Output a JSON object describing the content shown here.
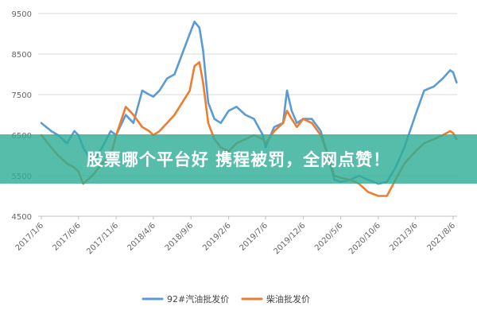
{
  "banner": {
    "text": "股票哪个平台好 携程被罚，全网点赞！"
  },
  "chart_data": {
    "type": "line",
    "title": "",
    "xlabel": "",
    "ylabel": "",
    "ylim": [
      4500,
      9500
    ],
    "yticks": [
      4500,
      5500,
      6500,
      7500,
      8500,
      9500
    ],
    "xtick_labels": [
      "2017/1/6",
      "2017/6/6",
      "2017/11/6",
      "2018/4/6",
      "2018/9/6",
      "2019/2/6",
      "2019/7/6",
      "2019/12/6",
      "2020/5/6",
      "2020/10/6",
      "2021/3/6",
      "2021/8/6"
    ],
    "grid": "horizontal",
    "legend": "bottom",
    "colors": {
      "gasoline": "#5b9bd5",
      "diesel": "#ed7d31"
    },
    "series": [
      {
        "name": "92#汽油批发价",
        "key": "gasoline",
        "x": [
          "2017/1/6",
          "2017/2/15",
          "2017/3/15",
          "2017/4/20",
          "2017/5/20",
          "2017/6/6",
          "2017/6/25",
          "2017/8/1",
          "2017/9/10",
          "2017/10/15",
          "2017/11/6",
          "2017/12/15",
          "2018/1/15",
          "2018/2/20",
          "2018/3/20",
          "2018/4/6",
          "2018/5/1",
          "2018/6/1",
          "2018/7/1",
          "2018/8/1",
          "2018/9/1",
          "2018/9/20",
          "2018/10/10",
          "2018/10/25",
          "2018/11/15",
          "2018/12/10",
          "2019/1/5",
          "2019/2/6",
          "2019/3/10",
          "2019/4/15",
          "2019/5/20",
          "2019/6/25",
          "2019/7/6",
          "2019/8/10",
          "2019/9/15",
          "2019/10/1",
          "2019/10/20",
          "2019/11/10",
          "2019/12/6",
          "2020/1/10",
          "2020/2/15",
          "2020/3/15",
          "2020/4/10",
          "2020/5/6",
          "2020/6/15",
          "2020/7/20",
          "2020/8/25",
          "2020/10/6",
          "2020/11/10",
          "2020/12/15",
          "2021/1/20",
          "2021/3/6",
          "2021/4/10",
          "2021/5/20",
          "2021/6/25",
          "2021/7/25",
          "2021/8/6",
          "2021/8/20"
        ],
        "values": [
          6800,
          6600,
          6500,
          6300,
          6600,
          6500,
          6200,
          5800,
          6200,
          6600,
          6500,
          7000,
          6800,
          7600,
          7500,
          7450,
          7600,
          7900,
          8000,
          8500,
          9000,
          9300,
          9150,
          8600,
          7300,
          6900,
          6800,
          7100,
          7200,
          7000,
          6900,
          6500,
          6200,
          6700,
          6800,
          7600,
          7100,
          6800,
          6900,
          6900,
          6600,
          6000,
          5400,
          5350,
          5400,
          5500,
          5400,
          5300,
          5350,
          5700,
          6200,
          7000,
          7600,
          7700,
          7900,
          8100,
          8050,
          7800
        ]
      },
      {
        "name": "柴油批发价",
        "key": "diesel",
        "x": [
          "2017/1/6",
          "2017/2/15",
          "2017/3/15",
          "2017/4/20",
          "2017/5/20",
          "2017/6/6",
          "2017/6/25",
          "2017/8/1",
          "2017/9/10",
          "2017/10/15",
          "2017/11/6",
          "2017/12/15",
          "2018/1/15",
          "2018/2/20",
          "2018/3/20",
          "2018/4/6",
          "2018/5/1",
          "2018/6/1",
          "2018/7/1",
          "2018/8/1",
          "2018/9/1",
          "2018/9/20",
          "2018/10/10",
          "2018/10/25",
          "2018/11/15",
          "2018/12/10",
          "2019/1/5",
          "2019/2/6",
          "2019/3/10",
          "2019/4/15",
          "2019/5/20",
          "2019/6/25",
          "2019/7/6",
          "2019/8/10",
          "2019/9/15",
          "2019/10/1",
          "2019/10/20",
          "2019/11/10",
          "2019/12/6",
          "2020/1/10",
          "2020/2/15",
          "2020/3/15",
          "2020/4/10",
          "2020/5/6",
          "2020/6/15",
          "2020/7/20",
          "2020/8/25",
          "2020/10/6",
          "2020/11/10",
          "2020/12/15",
          "2021/1/20",
          "2021/3/6",
          "2021/4/10",
          "2021/5/20",
          "2021/6/25",
          "2021/7/25",
          "2021/8/6",
          "2021/8/20"
        ],
        "values": [
          6500,
          6200,
          6000,
          5800,
          5700,
          5600,
          5300,
          5500,
          5800,
          6000,
          6500,
          7200,
          7000,
          6700,
          6600,
          6500,
          6600,
          6800,
          7000,
          7300,
          7600,
          8200,
          8300,
          7800,
          6800,
          6400,
          6200,
          6100,
          6300,
          6400,
          6500,
          6400,
          6300,
          6600,
          6800,
          7100,
          6900,
          6700,
          6900,
          6800,
          6500,
          6000,
          5500,
          5450,
          5400,
          5300,
          5100,
          5000,
          5000,
          5400,
          5800,
          6100,
          6300,
          6400,
          6500,
          6600,
          6550,
          6400
        ]
      }
    ]
  }
}
